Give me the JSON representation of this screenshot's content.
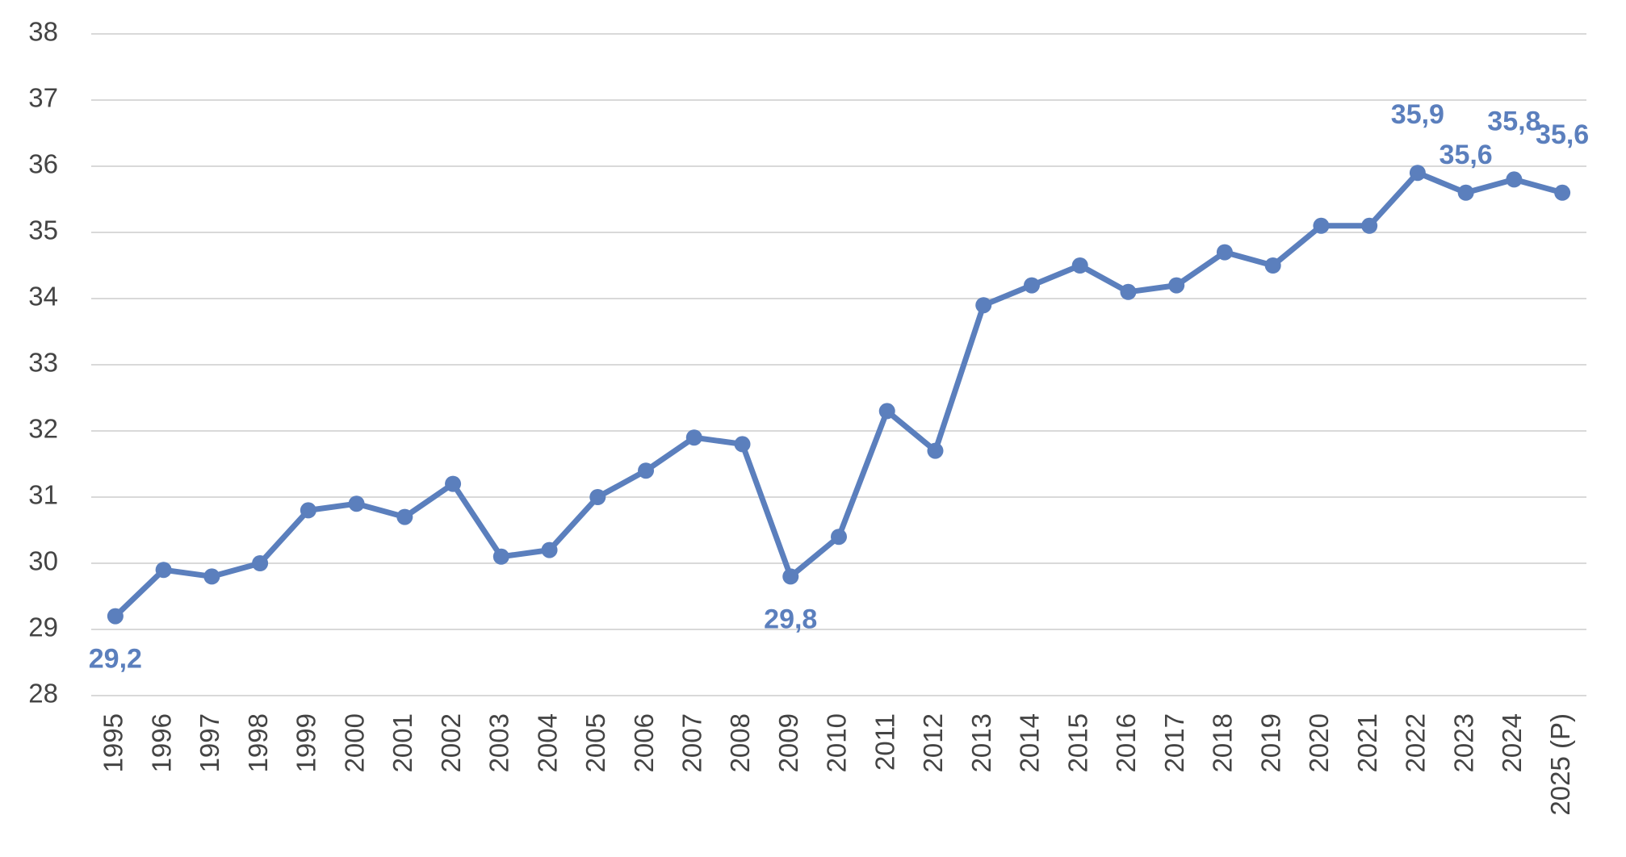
{
  "chart_data": {
    "type": "line",
    "categories": [
      "1995",
      "1996",
      "1997",
      "1998",
      "1999",
      "2000",
      "2001",
      "2002",
      "2003",
      "2004",
      "2005",
      "2006",
      "2007",
      "2008",
      "2009",
      "2010",
      "2011",
      "2012",
      "2013",
      "2014",
      "2015",
      "2016",
      "2017",
      "2018",
      "2019",
      "2020",
      "2021",
      "2022",
      "2023",
      "2024",
      "2025 (P)"
    ],
    "values": [
      29.2,
      29.9,
      29.8,
      30.0,
      30.8,
      30.9,
      30.7,
      31.2,
      30.1,
      30.2,
      31.0,
      31.4,
      31.9,
      31.8,
      29.8,
      30.4,
      32.3,
      31.7,
      33.9,
      34.2,
      34.5,
      34.1,
      34.2,
      34.7,
      34.5,
      35.1,
      35.1,
      35.9,
      35.6,
      35.8,
      35.6
    ],
    "value_labels": [
      "29,2",
      null,
      null,
      null,
      null,
      null,
      null,
      null,
      null,
      null,
      null,
      null,
      null,
      null,
      "29,8",
      null,
      null,
      null,
      null,
      null,
      null,
      null,
      null,
      null,
      null,
      null,
      null,
      "35,9",
      "35,6",
      "35,8",
      "35,6"
    ],
    "color": "#5b7fbd",
    "ylim": [
      28,
      38
    ],
    "yticks": [
      28,
      29,
      30,
      31,
      32,
      33,
      34,
      35,
      36,
      37,
      38
    ],
    "grid": true
  }
}
